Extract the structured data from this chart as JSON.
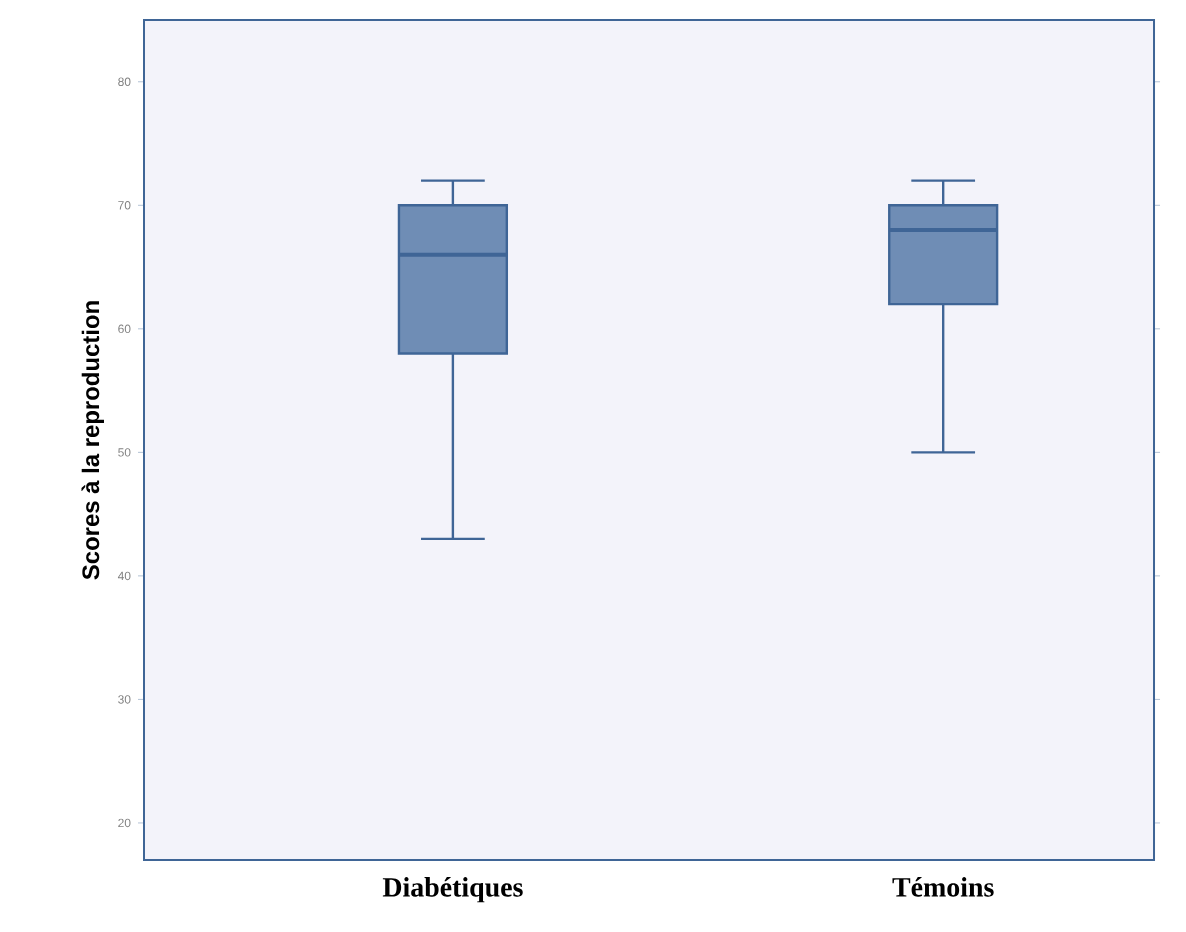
{
  "chart_data": {
    "type": "box",
    "ylabel": "Scores à la reproduction",
    "categories": [
      "Diabétiques",
      "Témoins"
    ],
    "series": [
      {
        "color": "#6f8db5",
        "boxes": [
          {
            "low": 43,
            "q1": 58,
            "median": 66,
            "q3": 70,
            "high": 72
          },
          {
            "low": 50,
            "q1": 62,
            "median": 68,
            "q3": 70,
            "high": 72
          }
        ]
      }
    ],
    "ylim": [
      17,
      85
    ],
    "yticks": [
      20,
      30,
      40,
      50,
      60,
      70,
      80
    ],
    "grid": false
  }
}
